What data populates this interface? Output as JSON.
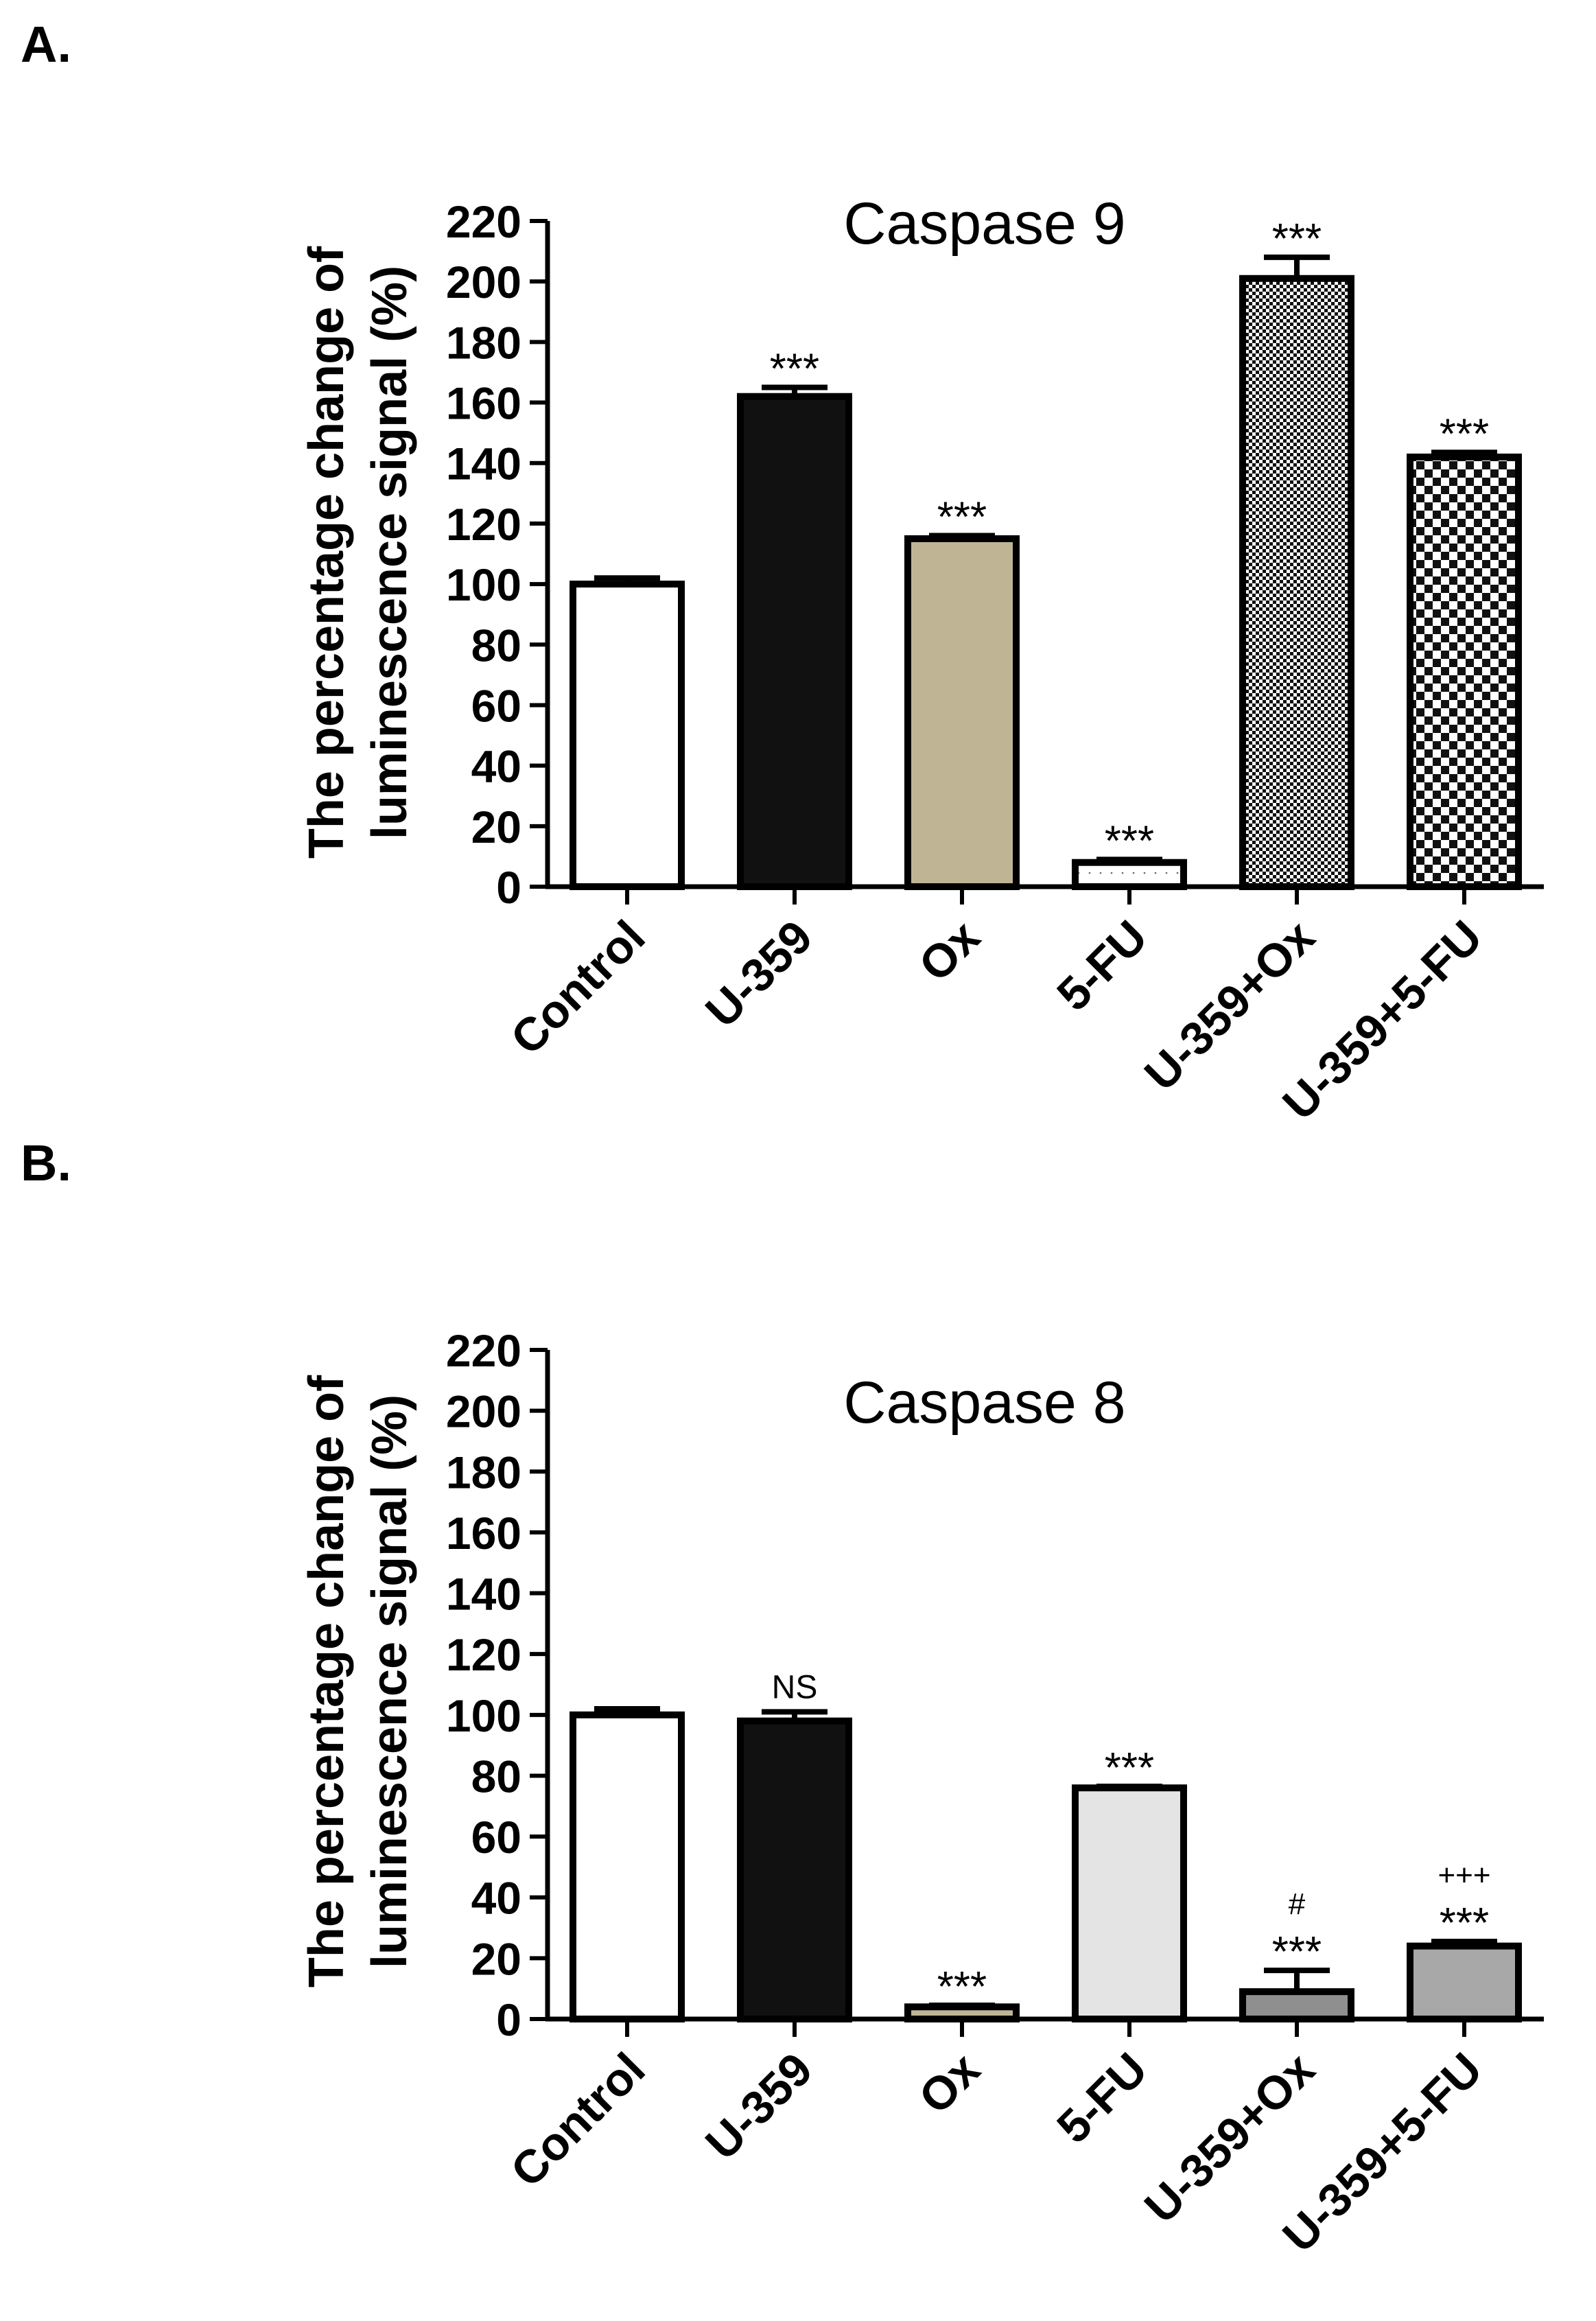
{
  "panels": [
    {
      "label": "A.",
      "chart_data": {
        "type": "bar",
        "title": "Caspase 9",
        "xlabel": "",
        "ylabel_line1": "The percentage change of",
        "ylabel_line2": "luminescence signal (%)",
        "ylim": [
          0,
          220
        ],
        "yticks": [
          0,
          20,
          40,
          60,
          80,
          100,
          120,
          140,
          160,
          180,
          200,
          220
        ],
        "categories": [
          "Control",
          "U-359",
          "Ox",
          "5-FU",
          "U-359+Ox",
          "U-359+5-FU"
        ],
        "values": [
          100,
          162,
          115,
          8,
          201,
          142
        ],
        "errors": [
          2,
          3,
          1,
          1,
          7,
          1.5
        ],
        "fills": [
          "#ffffff",
          "#111111",
          "#bfb595",
          "dots",
          "finecheck",
          "check"
        ],
        "annotations": [
          [],
          [
            "***"
          ],
          [
            "***"
          ],
          [
            "***"
          ],
          [
            "***"
          ],
          [
            "***"
          ]
        ]
      }
    },
    {
      "label": "B.",
      "chart_data": {
        "type": "bar",
        "title": "Caspase 8",
        "xlabel": "",
        "ylabel_line1": "The percentage change of",
        "ylabel_line2": "luminescence signal (%)",
        "ylim": [
          0,
          220
        ],
        "yticks": [
          0,
          20,
          40,
          60,
          80,
          100,
          120,
          140,
          160,
          180,
          200,
          220
        ],
        "categories": [
          "Control",
          "U-359",
          "Ox",
          "5-FU",
          "U-359+Ox",
          "U-359+5-FU"
        ],
        "values": [
          100,
          98,
          4,
          76,
          9,
          24
        ],
        "errors": [
          2,
          3,
          0.5,
          0.5,
          7,
          1.5
        ],
        "fills": [
          "#ffffff",
          "#111111",
          "#bfb595",
          "#e4e4e4",
          "#8f8f8f",
          "#a8a8a8"
        ],
        "annotations": [
          [],
          [
            "NS"
          ],
          [
            "***"
          ],
          [
            "***"
          ],
          [
            "***",
            "#"
          ],
          [
            "***",
            "+++"
          ]
        ]
      }
    }
  ]
}
